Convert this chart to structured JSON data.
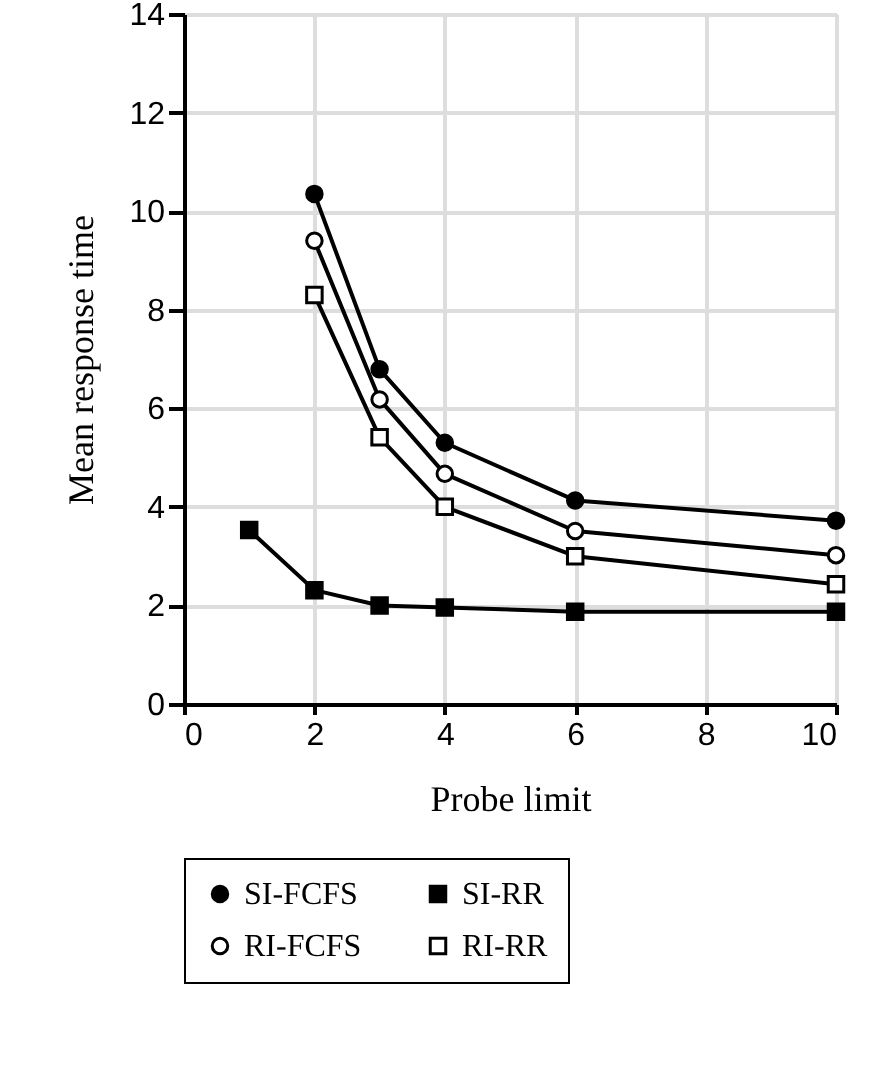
{
  "chart_data": {
    "type": "line",
    "xlabel": "Probe limit",
    "ylabel": "Mean response time",
    "x": [
      1,
      2,
      3,
      4,
      6,
      10
    ],
    "series": [
      {
        "name": "SI-FCFS",
        "color": "#000000",
        "marker": "circle",
        "values": [
          null,
          10.35,
          6.79,
          5.3,
          4.13,
          3.72
        ]
      },
      {
        "name": "SI-RR",
        "color": "#000000",
        "marker": "square",
        "values": [
          3.53,
          2.31,
          2.0,
          1.96,
          1.87,
          1.87
        ]
      },
      {
        "name": "RI-FCFS",
        "color": "#000000",
        "marker": "circle",
        "values": [
          null,
          9.4,
          6.18,
          4.67,
          3.51,
          3.02
        ]
      },
      {
        "name": "RI-RR",
        "color": "#000000",
        "marker": "square",
        "values": [
          null,
          8.3,
          5.41,
          4.0,
          3.0,
          2.43
        ]
      }
    ],
    "xlim": [
      0,
      10
    ],
    "xticks": [
      0,
      2,
      4,
      6,
      8,
      10
    ],
    "ylim": [
      0,
      14
    ],
    "yticks": [
      0,
      2,
      4,
      6,
      8,
      10,
      12,
      14
    ],
    "grid": true,
    "legend": "bottom",
    "line_style": "solid"
  }
}
